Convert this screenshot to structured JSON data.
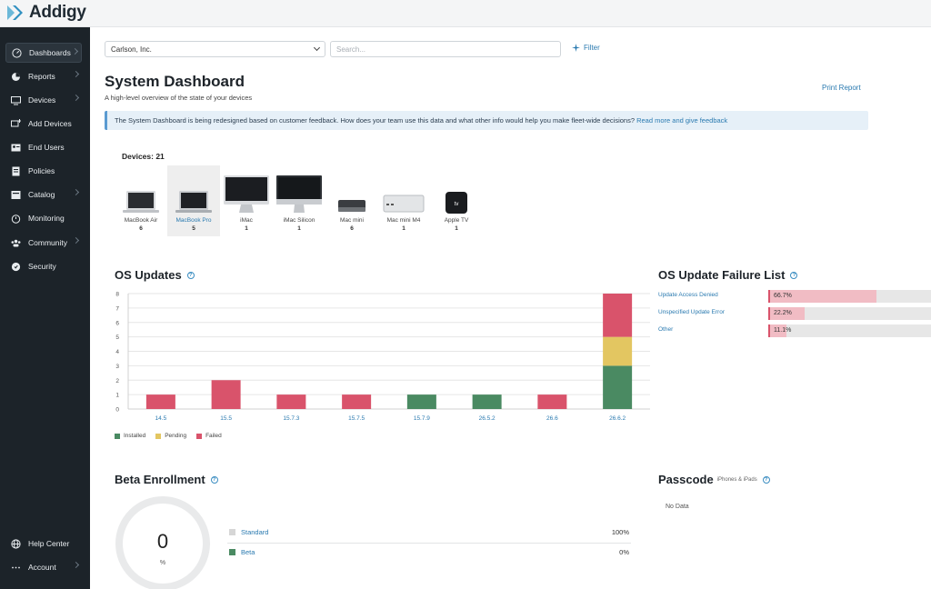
{
  "app": {
    "logo_text": "Addigy"
  },
  "sidebar": {
    "items": [
      {
        "label": "Dashboards",
        "icon": "gauge-icon",
        "chevron": true,
        "active": true
      },
      {
        "label": "Reports",
        "icon": "pie-chart-icon",
        "chevron": true
      },
      {
        "label": "Devices",
        "icon": "monitor-icon",
        "chevron": true
      },
      {
        "label": "Add Devices",
        "icon": "add-device-icon",
        "chevron": false
      },
      {
        "label": "End Users",
        "icon": "id-card-icon",
        "chevron": false
      },
      {
        "label": "Policies",
        "icon": "document-icon",
        "chevron": false
      },
      {
        "label": "Catalog",
        "icon": "catalog-icon",
        "chevron": true
      },
      {
        "label": "Monitoring",
        "icon": "alarm-icon",
        "chevron": false
      },
      {
        "label": "Community",
        "icon": "users-icon",
        "chevron": true
      },
      {
        "label": "Security",
        "icon": "shield-icon",
        "chevron": false
      }
    ],
    "bottom": [
      {
        "label": "Help Center",
        "icon": "globe-icon",
        "chevron": false
      },
      {
        "label": "Account",
        "icon": "dots-icon",
        "chevron": true
      }
    ]
  },
  "toolbar": {
    "org_select": "Carlson, Inc.",
    "search_placeholder": "Search...",
    "filter_label": "Filter"
  },
  "header": {
    "title": "System Dashboard",
    "subtitle": "A high-level overview of the state of your devices",
    "print_label": "Print Report"
  },
  "banner": {
    "text": "The System Dashboard is being redesigned based on customer feedback. How does your team use this data and what other info would help you make fleet-wide decisions?",
    "link": "Read more and give feedback"
  },
  "devices": {
    "label": "Devices: 21",
    "items": [
      {
        "name": "MacBook Air",
        "count": "6",
        "icon": "laptop-icon"
      },
      {
        "name": "MacBook Pro",
        "count": "5",
        "icon": "laptop-icon",
        "selected": true
      },
      {
        "name": "iMac",
        "count": "1",
        "icon": "imac-icon"
      },
      {
        "name": "iMac Silicon",
        "count": "1",
        "icon": "imac-icon"
      },
      {
        "name": "Mac mini",
        "count": "6",
        "icon": "mac-mini-icon"
      },
      {
        "name": "Mac mini M4",
        "count": "1",
        "icon": "mac-mini-icon"
      },
      {
        "name": "Apple TV",
        "count": "1",
        "icon": "apple-tv-icon"
      }
    ]
  },
  "os_updates": {
    "title": "OS Updates",
    "chart_data": {
      "type": "bar",
      "stacked": true,
      "categories": [
        "14.5",
        "15.5",
        "15.7.3",
        "15.7.5",
        "15.7.9",
        "26.5.2",
        "26.6",
        "26.6.2"
      ],
      "series": [
        {
          "name": "Installed",
          "color": "#4a8a62",
          "values": [
            0,
            0,
            0,
            0,
            1,
            1,
            0,
            3
          ]
        },
        {
          "name": "Pending",
          "color": "#e3c661",
          "values": [
            0,
            0,
            0,
            0,
            0,
            0,
            0,
            2
          ]
        },
        {
          "name": "Failed",
          "color": "#d9536b",
          "values": [
            1,
            2,
            1,
            1,
            0,
            0,
            1,
            3
          ]
        }
      ],
      "yticks": [
        "0",
        "1",
        "2",
        "3",
        "4",
        "5",
        "6",
        "7",
        "8"
      ],
      "ylim": [
        0,
        8
      ],
      "legend": "bottom-left",
      "grid": true
    }
  },
  "failure_list": {
    "title": "OS Update Failure List",
    "items": [
      {
        "label": "Update Access Denied",
        "pct_text": "66.7%",
        "value": 0.667
      },
      {
        "label": "Unspecified Update Error",
        "pct_text": "22.2%",
        "value": 0.222
      },
      {
        "label": "Other",
        "pct_text": "11.1%",
        "value": 0.111
      }
    ]
  },
  "beta": {
    "title": "Beta Enrollment",
    "value": "0",
    "unit": "%",
    "rows": [
      {
        "label": "Standard",
        "value": "100%",
        "color": "#d6d6d6"
      },
      {
        "label": "Beta",
        "value": "0%",
        "color": "#4a8a62"
      }
    ]
  },
  "passcode": {
    "title": "Passcode",
    "subtitle": "iPhones & iPads",
    "empty_text": "No Data"
  }
}
